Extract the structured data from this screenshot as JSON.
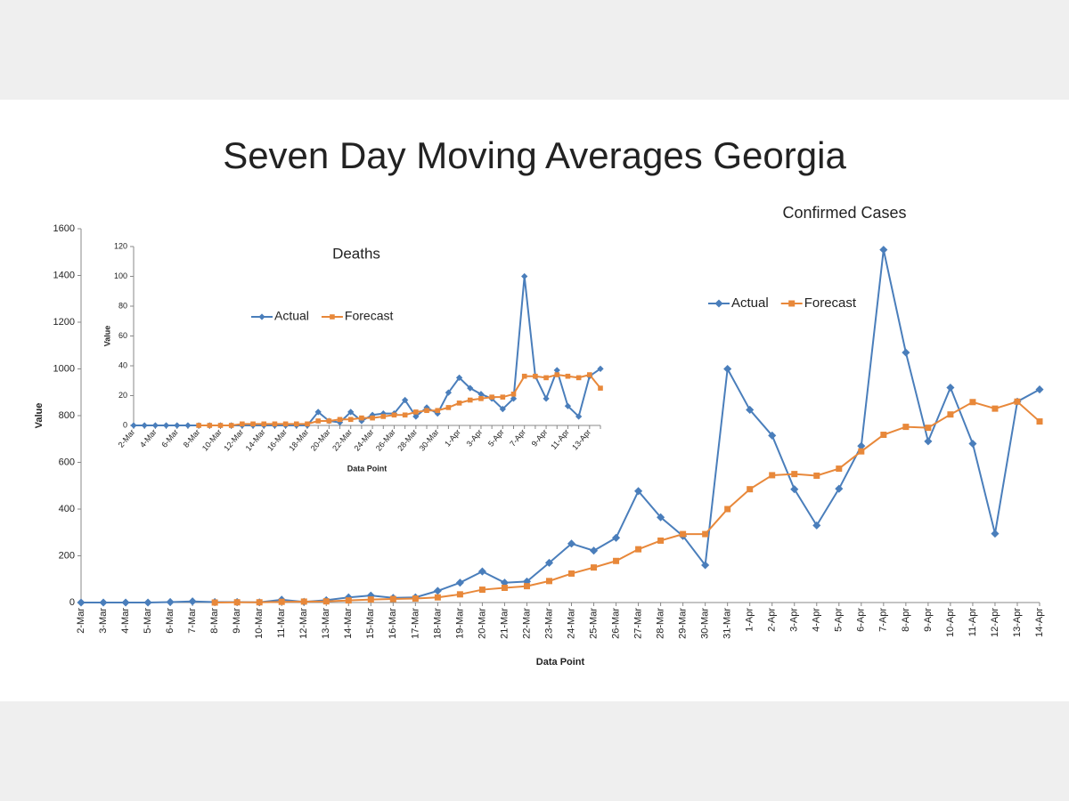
{
  "slide": {
    "title": "Seven Day Moving Averages Georgia"
  },
  "chart_data": [
    {
      "type": "line",
      "title": "Confirmed Cases",
      "x_label": "Data Point",
      "y_label": "Value",
      "categories": [
        "2-Mar",
        "3-Mar",
        "4-Mar",
        "5-Mar",
        "6-Mar",
        "7-Mar",
        "8-Mar",
        "9-Mar",
        "10-Mar",
        "11-Mar",
        "12-Mar",
        "13-Mar",
        "14-Mar",
        "15-Mar",
        "16-Mar",
        "17-Mar",
        "18-Mar",
        "19-Mar",
        "20-Mar",
        "21-Mar",
        "22-Mar",
        "23-Mar",
        "24-Mar",
        "25-Mar",
        "26-Mar",
        "27-Mar",
        "28-Mar",
        "29-Mar",
        "30-Mar",
        "31-Mar",
        "1-Apr",
        "2-Apr",
        "3-Apr",
        "4-Apr",
        "5-Apr",
        "6-Apr",
        "7-Apr",
        "8-Apr",
        "9-Apr",
        "10-Apr",
        "11-Apr",
        "12-Apr",
        "13-Apr",
        "14-Apr"
      ],
      "series": [
        {
          "name": "Actual",
          "color": "#4a7ebb",
          "marker": "diamond",
          "values": [
            0,
            0,
            0,
            0,
            2,
            5,
            2,
            2,
            1,
            12,
            3,
            10,
            22,
            30,
            20,
            22,
            50,
            85,
            133,
            85,
            90,
            170,
            252,
            222,
            277,
            477,
            365,
            285,
            160,
            1000,
            825,
            715,
            485,
            330,
            487,
            670,
            1510,
            1070,
            690,
            920,
            680,
            295,
            860,
            912
          ]
        },
        {
          "name": "Forecast",
          "color": "#e8883a",
          "marker": "square",
          "values": [
            null,
            null,
            null,
            null,
            null,
            null,
            0,
            1,
            1,
            3,
            4,
            5,
            9,
            13,
            15,
            17,
            22,
            35,
            55,
            63,
            70,
            92,
            124,
            150,
            178,
            228,
            265,
            293,
            293,
            400,
            485,
            545,
            550,
            543,
            573,
            647,
            718,
            752,
            748,
            805,
            858,
            830,
            860,
            775
          ]
        }
      ],
      "ylim": [
        0,
        1600
      ],
      "yticks": [
        0,
        200,
        400,
        600,
        800,
        1000,
        1200,
        1400,
        1600
      ],
      "grid": false,
      "legend": "top-right"
    },
    {
      "type": "line",
      "title": "Deaths",
      "x_label": "Data Point",
      "y_label": "Value",
      "categories": [
        "2-Mar",
        null,
        "4-Mar",
        null,
        "6-Mar",
        null,
        "8-Mar",
        null,
        "10-Mar",
        null,
        "12-Mar",
        null,
        "14-Mar",
        null,
        "16-Mar",
        null,
        "18-Mar",
        null,
        "20-Mar",
        null,
        "22-Mar",
        null,
        "24-Mar",
        null,
        "26-Mar",
        null,
        "28-Mar",
        null,
        "30-Mar",
        null,
        "1-Apr",
        null,
        "3-Apr",
        null,
        "5-Apr",
        null,
        "7-Apr",
        null,
        "9-Apr",
        null,
        "11-Apr",
        null,
        "13-Apr",
        null
      ],
      "series": [
        {
          "name": "Actual",
          "color": "#4a7ebb",
          "marker": "diamond",
          "values": [
            0,
            0,
            0,
            0,
            0,
            0,
            0,
            0,
            0,
            0,
            0,
            0,
            0,
            0,
            0,
            0,
            0,
            9,
            3,
            2,
            9,
            3,
            7,
            8,
            8,
            17,
            6,
            12,
            8,
            22,
            32,
            25,
            21,
            18,
            11,
            18,
            100,
            33,
            18,
            37,
            13,
            6,
            33,
            38
          ]
        },
        {
          "name": "Forecast",
          "color": "#e8883a",
          "marker": "square",
          "values": [
            null,
            null,
            null,
            null,
            null,
            null,
            0,
            0,
            0,
            0,
            1,
            1,
            1,
            1,
            1,
            1,
            1,
            3,
            3,
            4,
            4,
            5,
            5,
            6,
            7,
            7,
            9,
            10,
            10,
            12,
            15,
            17,
            18,
            19,
            19,
            21,
            33,
            33,
            32,
            34,
            33,
            32,
            34,
            25
          ]
        }
      ],
      "ylim": [
        0,
        120
      ],
      "yticks": [
        0,
        20,
        40,
        60,
        80,
        100,
        120
      ],
      "grid": false,
      "legend": "top-left"
    }
  ]
}
